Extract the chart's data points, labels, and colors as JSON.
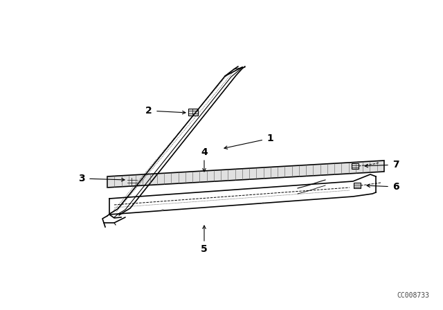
{
  "background_color": "#ffffff",
  "watermark": "CC008733",
  "fig_width": 6.4,
  "fig_height": 4.48,
  "dpi": 100,
  "line_color": "#000000",
  "label_fontsize": 10,
  "watermark_fontsize": 7
}
